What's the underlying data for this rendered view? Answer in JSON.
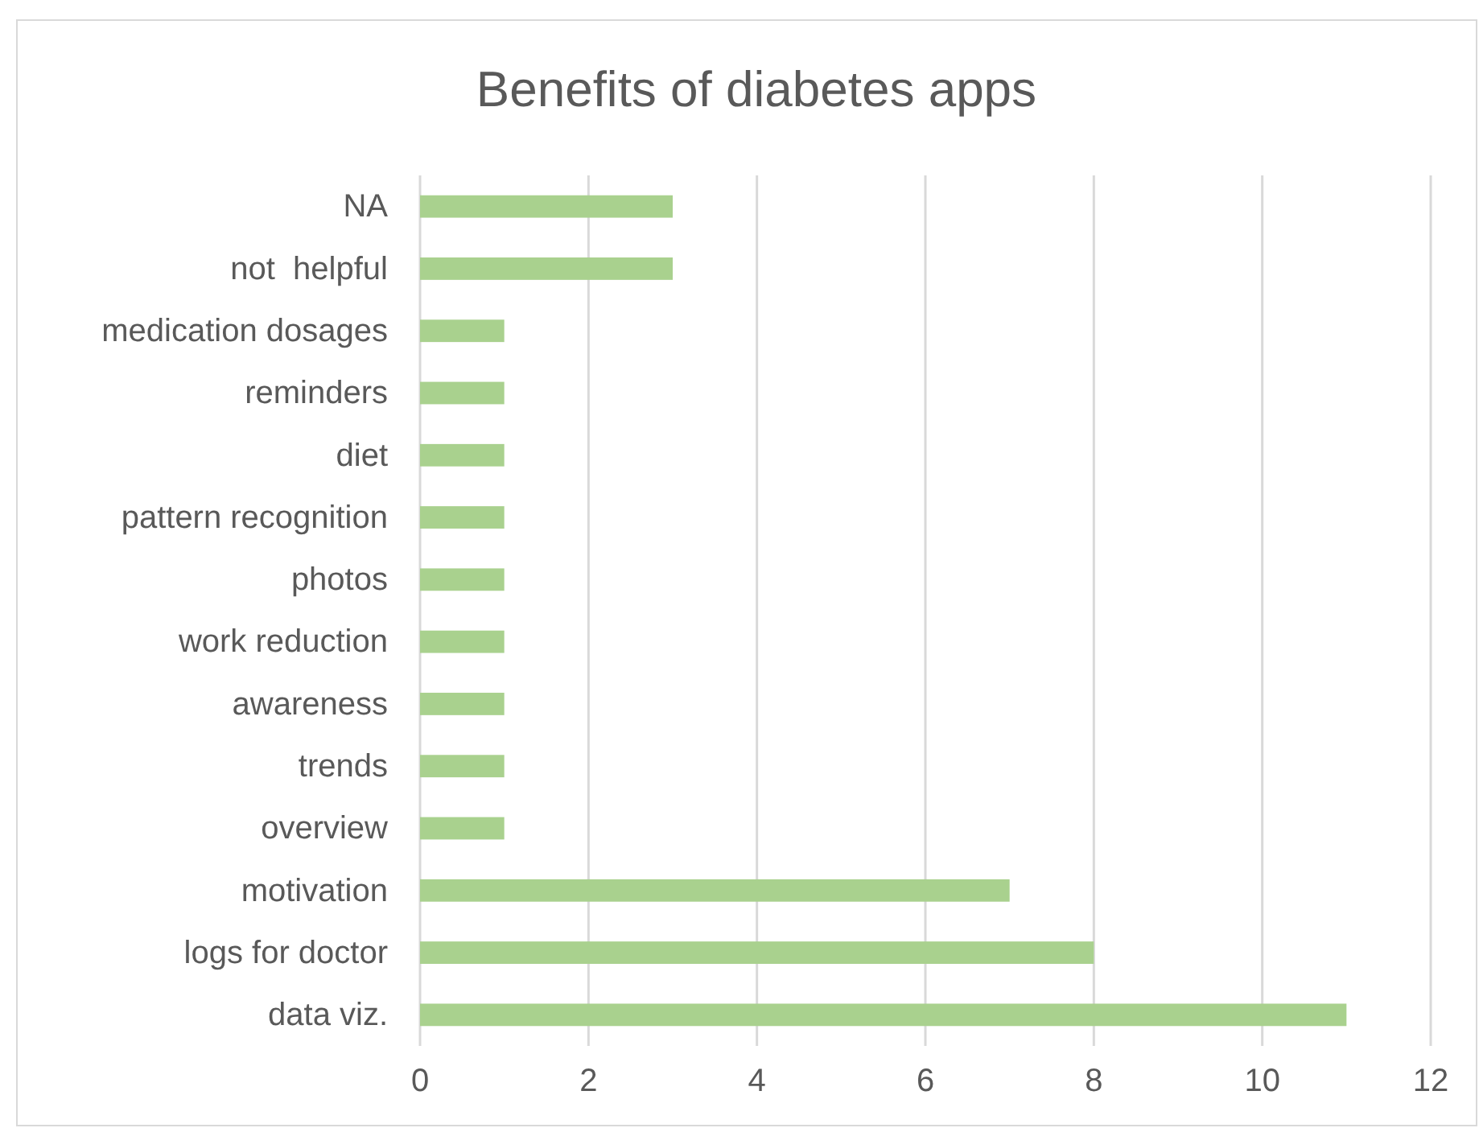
{
  "chart_data": {
    "type": "bar",
    "orientation": "horizontal",
    "title": "Benefits of diabetes apps",
    "categories": [
      "NA",
      "not  helpful",
      "medication dosages",
      "reminders",
      "diet",
      "pattern recognition",
      "photos",
      "work reduction",
      "awareness",
      "trends",
      "overview",
      "motivation",
      "logs for doctor",
      "data viz."
    ],
    "values": [
      3,
      3,
      1,
      1,
      1,
      1,
      1,
      1,
      1,
      1,
      1,
      7,
      8,
      11
    ],
    "color": "#a9d18e",
    "xlim": [
      0,
      12
    ],
    "xticks": [
      0,
      2,
      4,
      6,
      8,
      10,
      12
    ],
    "grid": "x"
  }
}
